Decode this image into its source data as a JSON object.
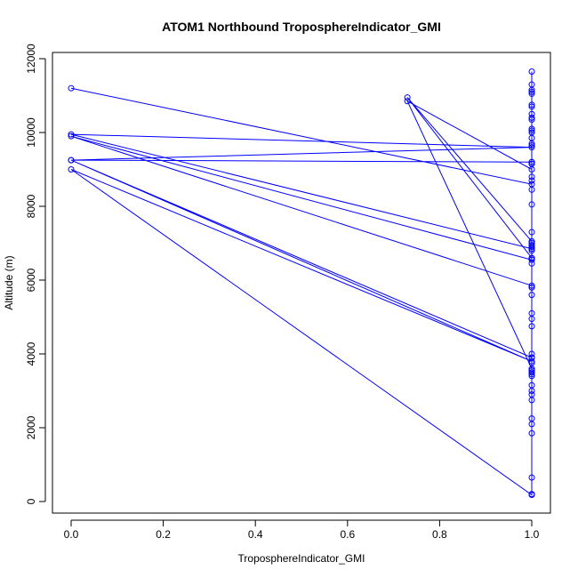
{
  "chart_data": {
    "type": "line",
    "title": "ATOM1 Northbound TroposphereIndicator_GMI",
    "xlabel": "TroposphereIndicator_GMI",
    "ylabel": "Altitude (m)",
    "xlim": [
      0,
      1
    ],
    "ylim": [
      0,
      12000
    ],
    "x_ticks": [
      0,
      0.2,
      0.4,
      0.6,
      0.8,
      1
    ],
    "x_tick_labels": [
      "0.0",
      "0.2",
      "0.4",
      "0.6",
      "0.8",
      "1.0"
    ],
    "y_ticks": [
      0,
      2000,
      4000,
      6000,
      8000,
      10000,
      12000
    ],
    "y_tick_labels": [
      "0",
      "2000",
      "4000",
      "6000",
      "8000",
      "10000",
      "12000"
    ],
    "grid": false,
    "series_color": "#0000ff",
    "marker": "open-circle",
    "series": [
      {
        "x": [
          0,
          1,
          1,
          1,
          1,
          1,
          1,
          1,
          1,
          1,
          1,
          1,
          1,
          1,
          1,
          1,
          1,
          1,
          1,
          1,
          1,
          1,
          1,
          1,
          1,
          1,
          1,
          1,
          1,
          1,
          1,
          1,
          1,
          1,
          1,
          1,
          1,
          1,
          1,
          1,
          1,
          1,
          1,
          1,
          1,
          1,
          1,
          1,
          1,
          1,
          0,
          1,
          0,
          1,
          0,
          1,
          1,
          1,
          0,
          1,
          1,
          1,
          0.73,
          1,
          1,
          1,
          1,
          1,
          1,
          1,
          0,
          1,
          1,
          1,
          0.73,
          1,
          1,
          1
        ],
        "y": [
          11200,
          8600,
          8450,
          8700,
          8800,
          9150,
          9200,
          9650,
          9850,
          10050,
          10100,
          10350,
          10400,
          10500,
          10700,
          10750,
          11050,
          11100,
          11150,
          11300,
          11650,
          10000,
          9700,
          8050,
          7300,
          7050,
          6950,
          6800,
          6600,
          6550,
          6450,
          5800,
          5600,
          5100,
          4950,
          4750,
          3900,
          3750,
          3450,
          3400,
          3150,
          3000,
          2900,
          2750,
          2250,
          2100,
          1850,
          650,
          200,
          180,
          9000,
          3800,
          9250,
          9600,
          9950,
          6850,
          6900,
          6550,
          9900,
          5850,
          5800,
          6600,
          10950,
          7050,
          7000,
          6850,
          3550,
          3500,
          4000,
          3900,
          9250,
          9200,
          9150,
          9000,
          10850,
          3600,
          3550,
          200
        ]
      }
    ]
  }
}
